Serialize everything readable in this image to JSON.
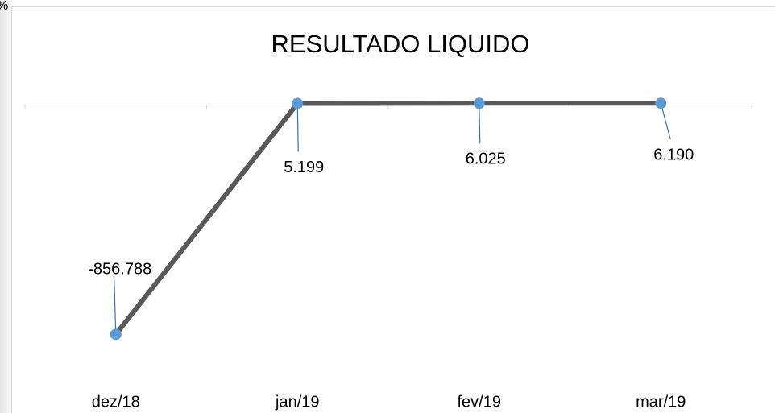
{
  "corner_text": "%",
  "chart_data": {
    "type": "line",
    "title": "RESULTADO LIQUIDO",
    "categories": [
      "dez/18",
      "jan/19",
      "fev/19",
      "mar/19"
    ],
    "series": [
      {
        "color": "#595959",
        "marker_color": "#5b9bd5",
        "values": [
          -856788,
          5199,
          6025,
          6190
        ],
        "value_labels": [
          "-856.788",
          "5.199",
          "6.025",
          "6.190"
        ]
      }
    ],
    "ylim": [
      -1000000,
      100000
    ]
  }
}
